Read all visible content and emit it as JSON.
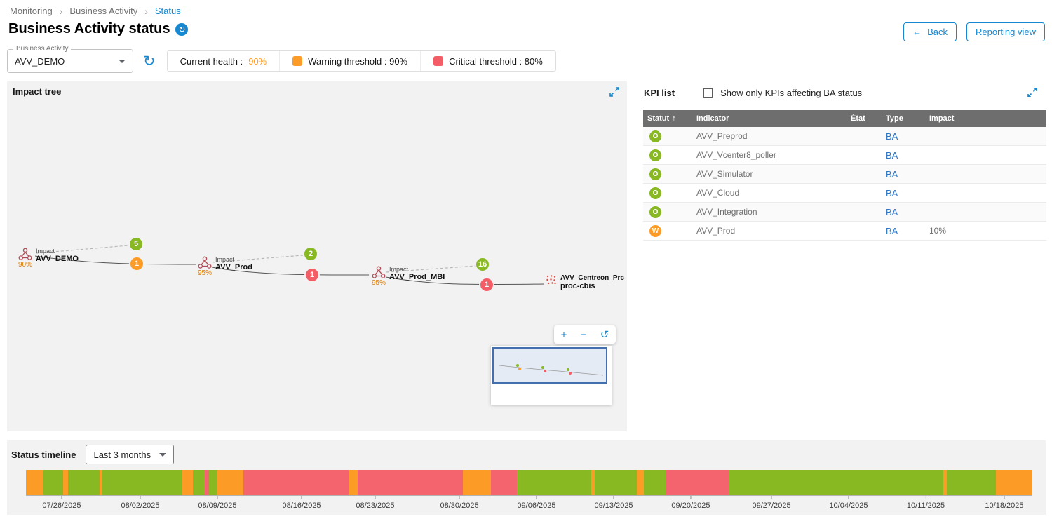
{
  "colors": {
    "primary": "#1588d1",
    "ok": "#88b922",
    "warning": "#fd9b27",
    "critical": "#f35d66"
  },
  "breadcrumb": {
    "separator": "›",
    "items": [
      "Monitoring",
      "Business Activity",
      "Status"
    ]
  },
  "header": {
    "title": "Business Activity status",
    "title_badge_icon": "↻",
    "back_icon": "←",
    "back_label": "Back",
    "reporting_label": "Reporting view"
  },
  "controls": {
    "ba_select_label": "Business Activity",
    "ba_select_value": "AVV_DEMO",
    "refresh_icon": "↻",
    "legend": {
      "current_health_label": "Current health :",
      "current_health_value": "90%",
      "warning_label": "Warning threshold : 90%",
      "critical_label": "Critical threshold : 80%"
    }
  },
  "impact_tree": {
    "title": "Impact tree",
    "nodes": [
      {
        "health": "90%",
        "line1": "Impact",
        "line2": "AVV_DEMO"
      },
      {
        "health": "95%",
        "line1": "Impact",
        "line2": "AVV_Prod"
      },
      {
        "health": "95%",
        "line1": "Impact",
        "line2": "AVV_Prod_MBI"
      },
      {
        "line1": "AVV_Centreon_Prc",
        "line2": "proc-cbis"
      }
    ],
    "badges": [
      {
        "value": "5",
        "status": "ok"
      },
      {
        "value": "1",
        "status": "warning"
      },
      {
        "value": "2",
        "status": "ok"
      },
      {
        "value": "1",
        "status": "critical"
      },
      {
        "value": "16",
        "status": "ok"
      },
      {
        "value": "1",
        "status": "critical"
      }
    ],
    "zoom": {
      "zoom_in": "+",
      "zoom_out": "−",
      "reset": "↺"
    }
  },
  "kpi_list": {
    "title": "KPI list",
    "filter_label": "Show only KPIs affecting BA status",
    "sort_icon": "↑",
    "columns": [
      "Statut",
      "Indicator",
      "État",
      "Type",
      "Impact"
    ],
    "rows": [
      {
        "status": "O",
        "indicator": "AVV_Preprod",
        "etat": "",
        "type": "BA",
        "impact": ""
      },
      {
        "status": "O",
        "indicator": "AVV_Vcenter8_poller",
        "etat": "",
        "type": "BA",
        "impact": ""
      },
      {
        "status": "O",
        "indicator": "AVV_Simulator",
        "etat": "",
        "type": "BA",
        "impact": ""
      },
      {
        "status": "O",
        "indicator": "AVV_Cloud",
        "etat": "",
        "type": "BA",
        "impact": ""
      },
      {
        "status": "O",
        "indicator": "AVV_Integration",
        "etat": "",
        "type": "BA",
        "impact": ""
      },
      {
        "status": "W",
        "indicator": "AVV_Prod",
        "etat": "",
        "type": "BA",
        "impact": "10%"
      }
    ]
  },
  "timeline": {
    "title": "Status timeline",
    "range_value": "Last 3 months"
  },
  "chart_data": {
    "type": "bar",
    "title": "Status timeline",
    "description": "BA health status over last 3 months; colored segments = status over time",
    "legend": [
      "ok",
      "warning",
      "critical"
    ],
    "colors": {
      "ok": "#88b922",
      "warning": "#fd9b27",
      "critical": "#f4646e"
    },
    "segments": [
      {
        "status": "warning",
        "width_pct": 1.74
      },
      {
        "status": "ok",
        "width_pct": 1.95
      },
      {
        "status": "warning",
        "width_pct": 0.49
      },
      {
        "status": "ok",
        "width_pct": 3.14
      },
      {
        "status": "warning",
        "width_pct": 0.28
      },
      {
        "status": "ok",
        "width_pct": 7.94
      },
      {
        "status": "warning",
        "width_pct": 1.05
      },
      {
        "status": "ok",
        "width_pct": 1.18
      },
      {
        "status": "critical",
        "width_pct": 0.42
      },
      {
        "status": "ok",
        "width_pct": 0.83
      },
      {
        "status": "warning",
        "width_pct": 2.58
      },
      {
        "status": "critical",
        "width_pct": 10.46
      },
      {
        "status": "warning",
        "width_pct": 0.9
      },
      {
        "status": "critical",
        "width_pct": 10.45
      },
      {
        "status": "warning",
        "width_pct": 2.79
      },
      {
        "status": "critical",
        "width_pct": 2.58
      },
      {
        "status": "ok",
        "width_pct": 7.39
      },
      {
        "status": "warning",
        "width_pct": 0.35
      },
      {
        "status": "ok",
        "width_pct": 4.18
      },
      {
        "status": "warning",
        "width_pct": 0.69
      },
      {
        "status": "ok",
        "width_pct": 2.23
      },
      {
        "status": "critical",
        "width_pct": 6.28
      },
      {
        "status": "ok",
        "width_pct": 21.25
      },
      {
        "status": "warning",
        "width_pct": 0.35
      },
      {
        "status": "ok",
        "width_pct": 4.88
      },
      {
        "status": "warning",
        "width_pct": 3.62
      }
    ],
    "ticks": [
      {
        "label": "07/26/2025",
        "pos_pct": 3.55
      },
      {
        "label": "08/02/2025",
        "pos_pct": 11.36
      },
      {
        "label": "08/09/2025",
        "pos_pct": 19.02
      },
      {
        "label": "08/16/2025",
        "pos_pct": 27.39
      },
      {
        "label": "08/23/2025",
        "pos_pct": 34.7
      },
      {
        "label": "08/30/2025",
        "pos_pct": 43.07
      },
      {
        "label": "09/06/2025",
        "pos_pct": 50.73
      },
      {
        "label": "09/13/2025",
        "pos_pct": 58.4
      },
      {
        "label": "09/20/2025",
        "pos_pct": 66.06
      },
      {
        "label": "09/27/2025",
        "pos_pct": 74.08
      },
      {
        "label": "10/04/2025",
        "pos_pct": 81.74
      },
      {
        "label": "10/11/2025",
        "pos_pct": 89.41
      },
      {
        "label": "10/18/2025",
        "pos_pct": 97.21
      }
    ]
  }
}
